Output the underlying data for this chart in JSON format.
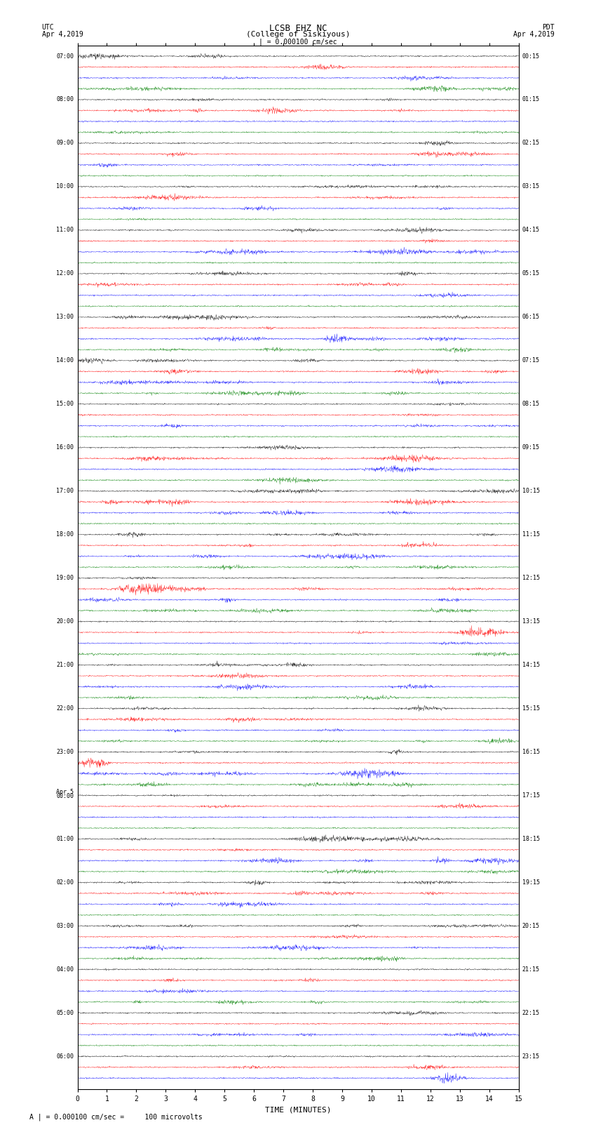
{
  "title_line1": "LCSB EHZ NC",
  "title_line2": "(College of Siskiyous)",
  "scale_text": "| = 0.000100 cm/sec",
  "footer_text": "A | = 0.000100 cm/sec =     100 microvolts",
  "utc_label": "UTC",
  "utc_date": "Apr 4,2019",
  "pdt_label": "PDT",
  "pdt_date": "Apr 4,2019",
  "xlabel": "TIME (MINUTES)",
  "colors": [
    "black",
    "red",
    "blue",
    "green"
  ],
  "left_times_utc": [
    "07:00",
    "",
    "",
    "",
    "08:00",
    "",
    "",
    "",
    "09:00",
    "",
    "",
    "",
    "10:00",
    "",
    "",
    "",
    "11:00",
    "",
    "",
    "",
    "12:00",
    "",
    "",
    "",
    "13:00",
    "",
    "",
    "",
    "14:00",
    "",
    "",
    "",
    "15:00",
    "",
    "",
    "",
    "16:00",
    "",
    "",
    "",
    "17:00",
    "",
    "",
    "",
    "18:00",
    "",
    "",
    "",
    "19:00",
    "",
    "",
    "",
    "20:00",
    "",
    "",
    "",
    "21:00",
    "",
    "",
    "",
    "22:00",
    "",
    "",
    "",
    "23:00",
    "",
    "",
    "",
    "Apr 5\n00:00",
    "",
    "",
    "",
    "01:00",
    "",
    "",
    "",
    "02:00",
    "",
    "",
    "",
    "03:00",
    "",
    "",
    "",
    "04:00",
    "",
    "",
    "",
    "05:00",
    "",
    "",
    "",
    "06:00",
    "",
    ""
  ],
  "right_times_pdt": [
    "00:15",
    "",
    "",
    "",
    "01:15",
    "",
    "",
    "",
    "02:15",
    "",
    "",
    "",
    "03:15",
    "",
    "",
    "",
    "04:15",
    "",
    "",
    "",
    "05:15",
    "",
    "",
    "",
    "06:15",
    "",
    "",
    "",
    "07:15",
    "",
    "",
    "",
    "08:15",
    "",
    "",
    "",
    "09:15",
    "",
    "",
    "",
    "10:15",
    "",
    "",
    "",
    "11:15",
    "",
    "",
    "",
    "12:15",
    "",
    "",
    "",
    "13:15",
    "",
    "",
    "",
    "14:15",
    "",
    "",
    "",
    "15:15",
    "",
    "",
    "",
    "16:15",
    "",
    "",
    "",
    "17:15",
    "",
    "",
    "",
    "18:15",
    "",
    "",
    "",
    "19:15",
    "",
    "",
    "",
    "20:15",
    "",
    "",
    "",
    "21:15",
    "",
    "",
    "",
    "22:15",
    "",
    "",
    "",
    "23:15",
    "",
    ""
  ],
  "fig_width": 8.5,
  "fig_height": 16.13,
  "bg_color": "white",
  "font_size_title": 9,
  "font_size_labels": 7,
  "font_size_ticks": 7,
  "font_size_footer": 7,
  "xmin": 0,
  "xmax": 15,
  "xticks": [
    0,
    1,
    2,
    3,
    4,
    5,
    6,
    7,
    8,
    9,
    10,
    11,
    12,
    13,
    14,
    15
  ]
}
